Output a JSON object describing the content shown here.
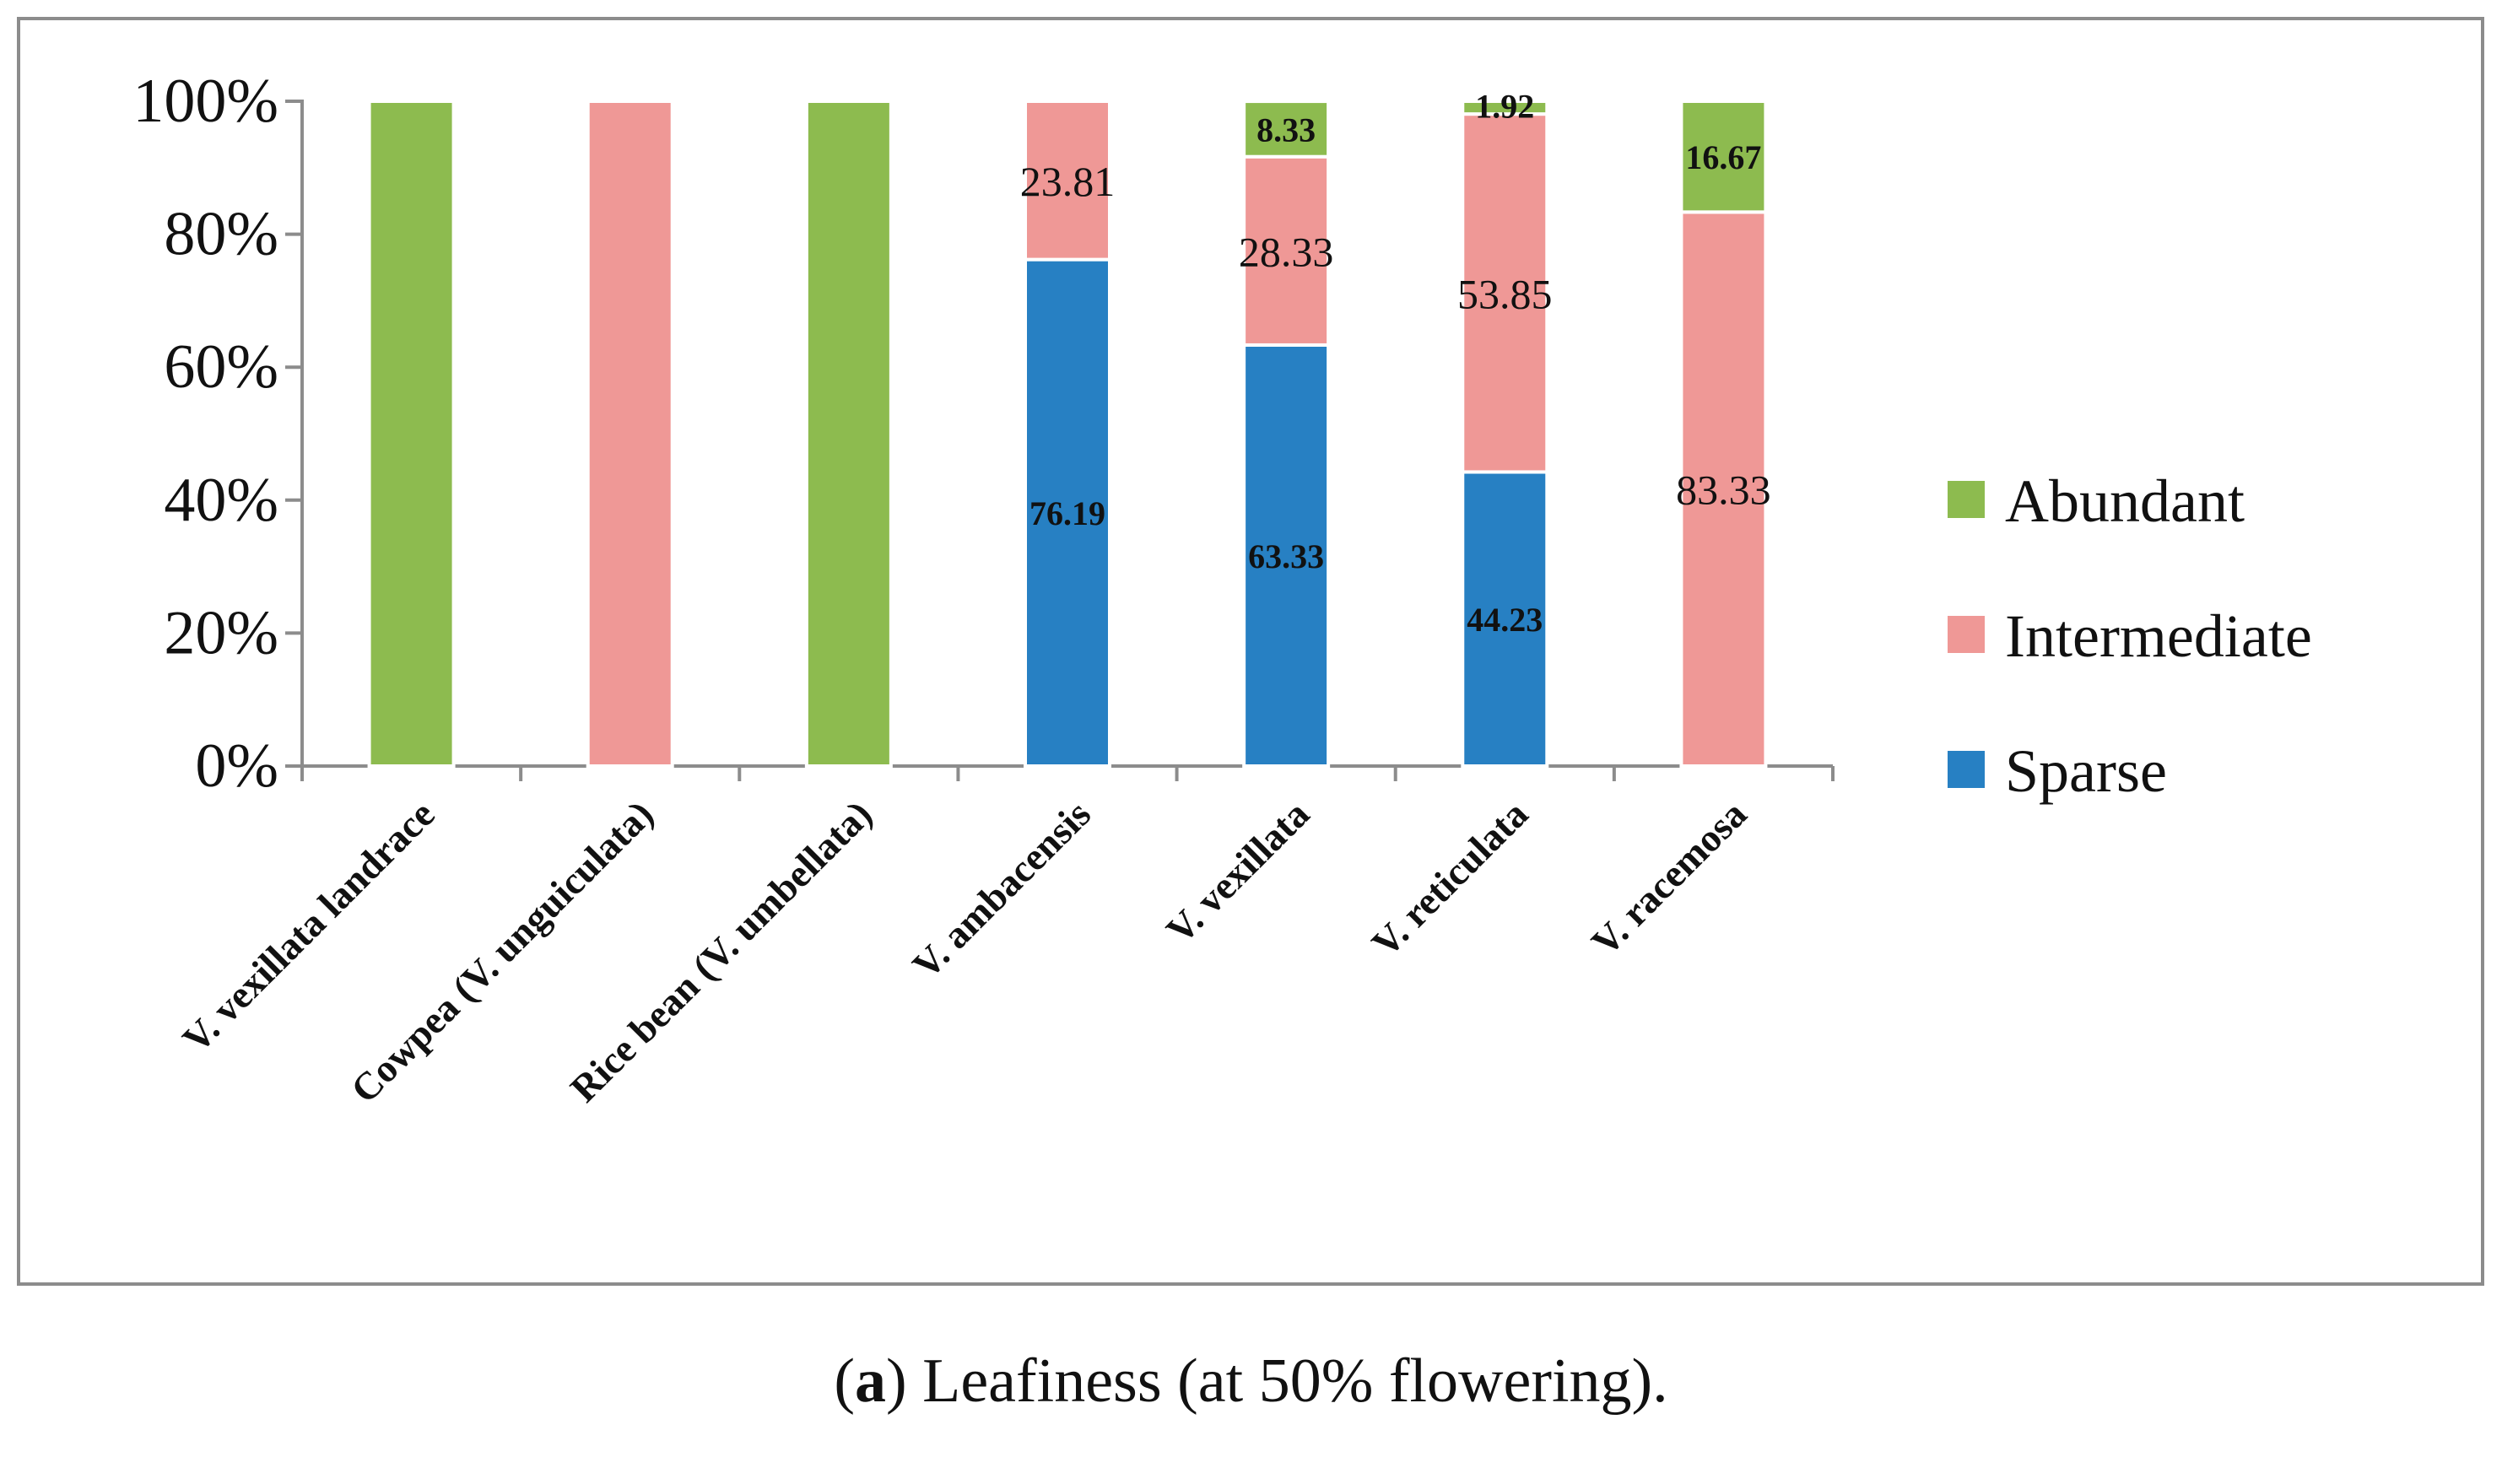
{
  "chart_data": {
    "type": "bar",
    "stacked": true,
    "percent": true,
    "categories": [
      "V. vexillata landrace",
      "Cowpea (V. unguiculata)",
      "Rice bean (V. umbellata)",
      "V. ambacensis",
      "V. vexillata",
      "V. reticulata",
      "V. racemosa"
    ],
    "series": [
      {
        "name": "Sparse",
        "color": "#2780c3",
        "values": [
          0,
          0,
          0,
          76.19,
          63.33,
          44.23,
          0
        ],
        "labels": [
          "",
          "",
          "",
          "76.19",
          "63.33",
          "44.23",
          ""
        ],
        "label_bold": true
      },
      {
        "name": "Intermediate",
        "color": "#ef9896",
        "values": [
          0,
          100,
          0,
          23.81,
          28.33,
          53.85,
          83.33
        ],
        "labels": [
          "",
          "",
          "",
          "23.81",
          "28.33",
          "53.85",
          "83.33"
        ],
        "label_bold": false
      },
      {
        "name": "Abundant",
        "color": "#8dbb4f",
        "values": [
          100,
          0,
          100,
          0,
          8.33,
          1.92,
          16.67
        ],
        "labels": [
          "",
          "",
          "",
          "",
          "8.33",
          "1.92",
          "16.67"
        ],
        "label_bold": true
      }
    ],
    "y_ticks": [
      "0%",
      "20%",
      "40%",
      "60%",
      "80%",
      "100%"
    ],
    "ylim": [
      0,
      100
    ],
    "grid": false,
    "legend_position": "right",
    "legend_order": [
      "Abundant",
      "Intermediate",
      "Sparse"
    ],
    "title": "",
    "xlabel": "",
    "ylabel": ""
  },
  "caption": {
    "open_paren": "(",
    "letter": "a",
    "text": ") Leafiness (at 50% flowering)."
  }
}
